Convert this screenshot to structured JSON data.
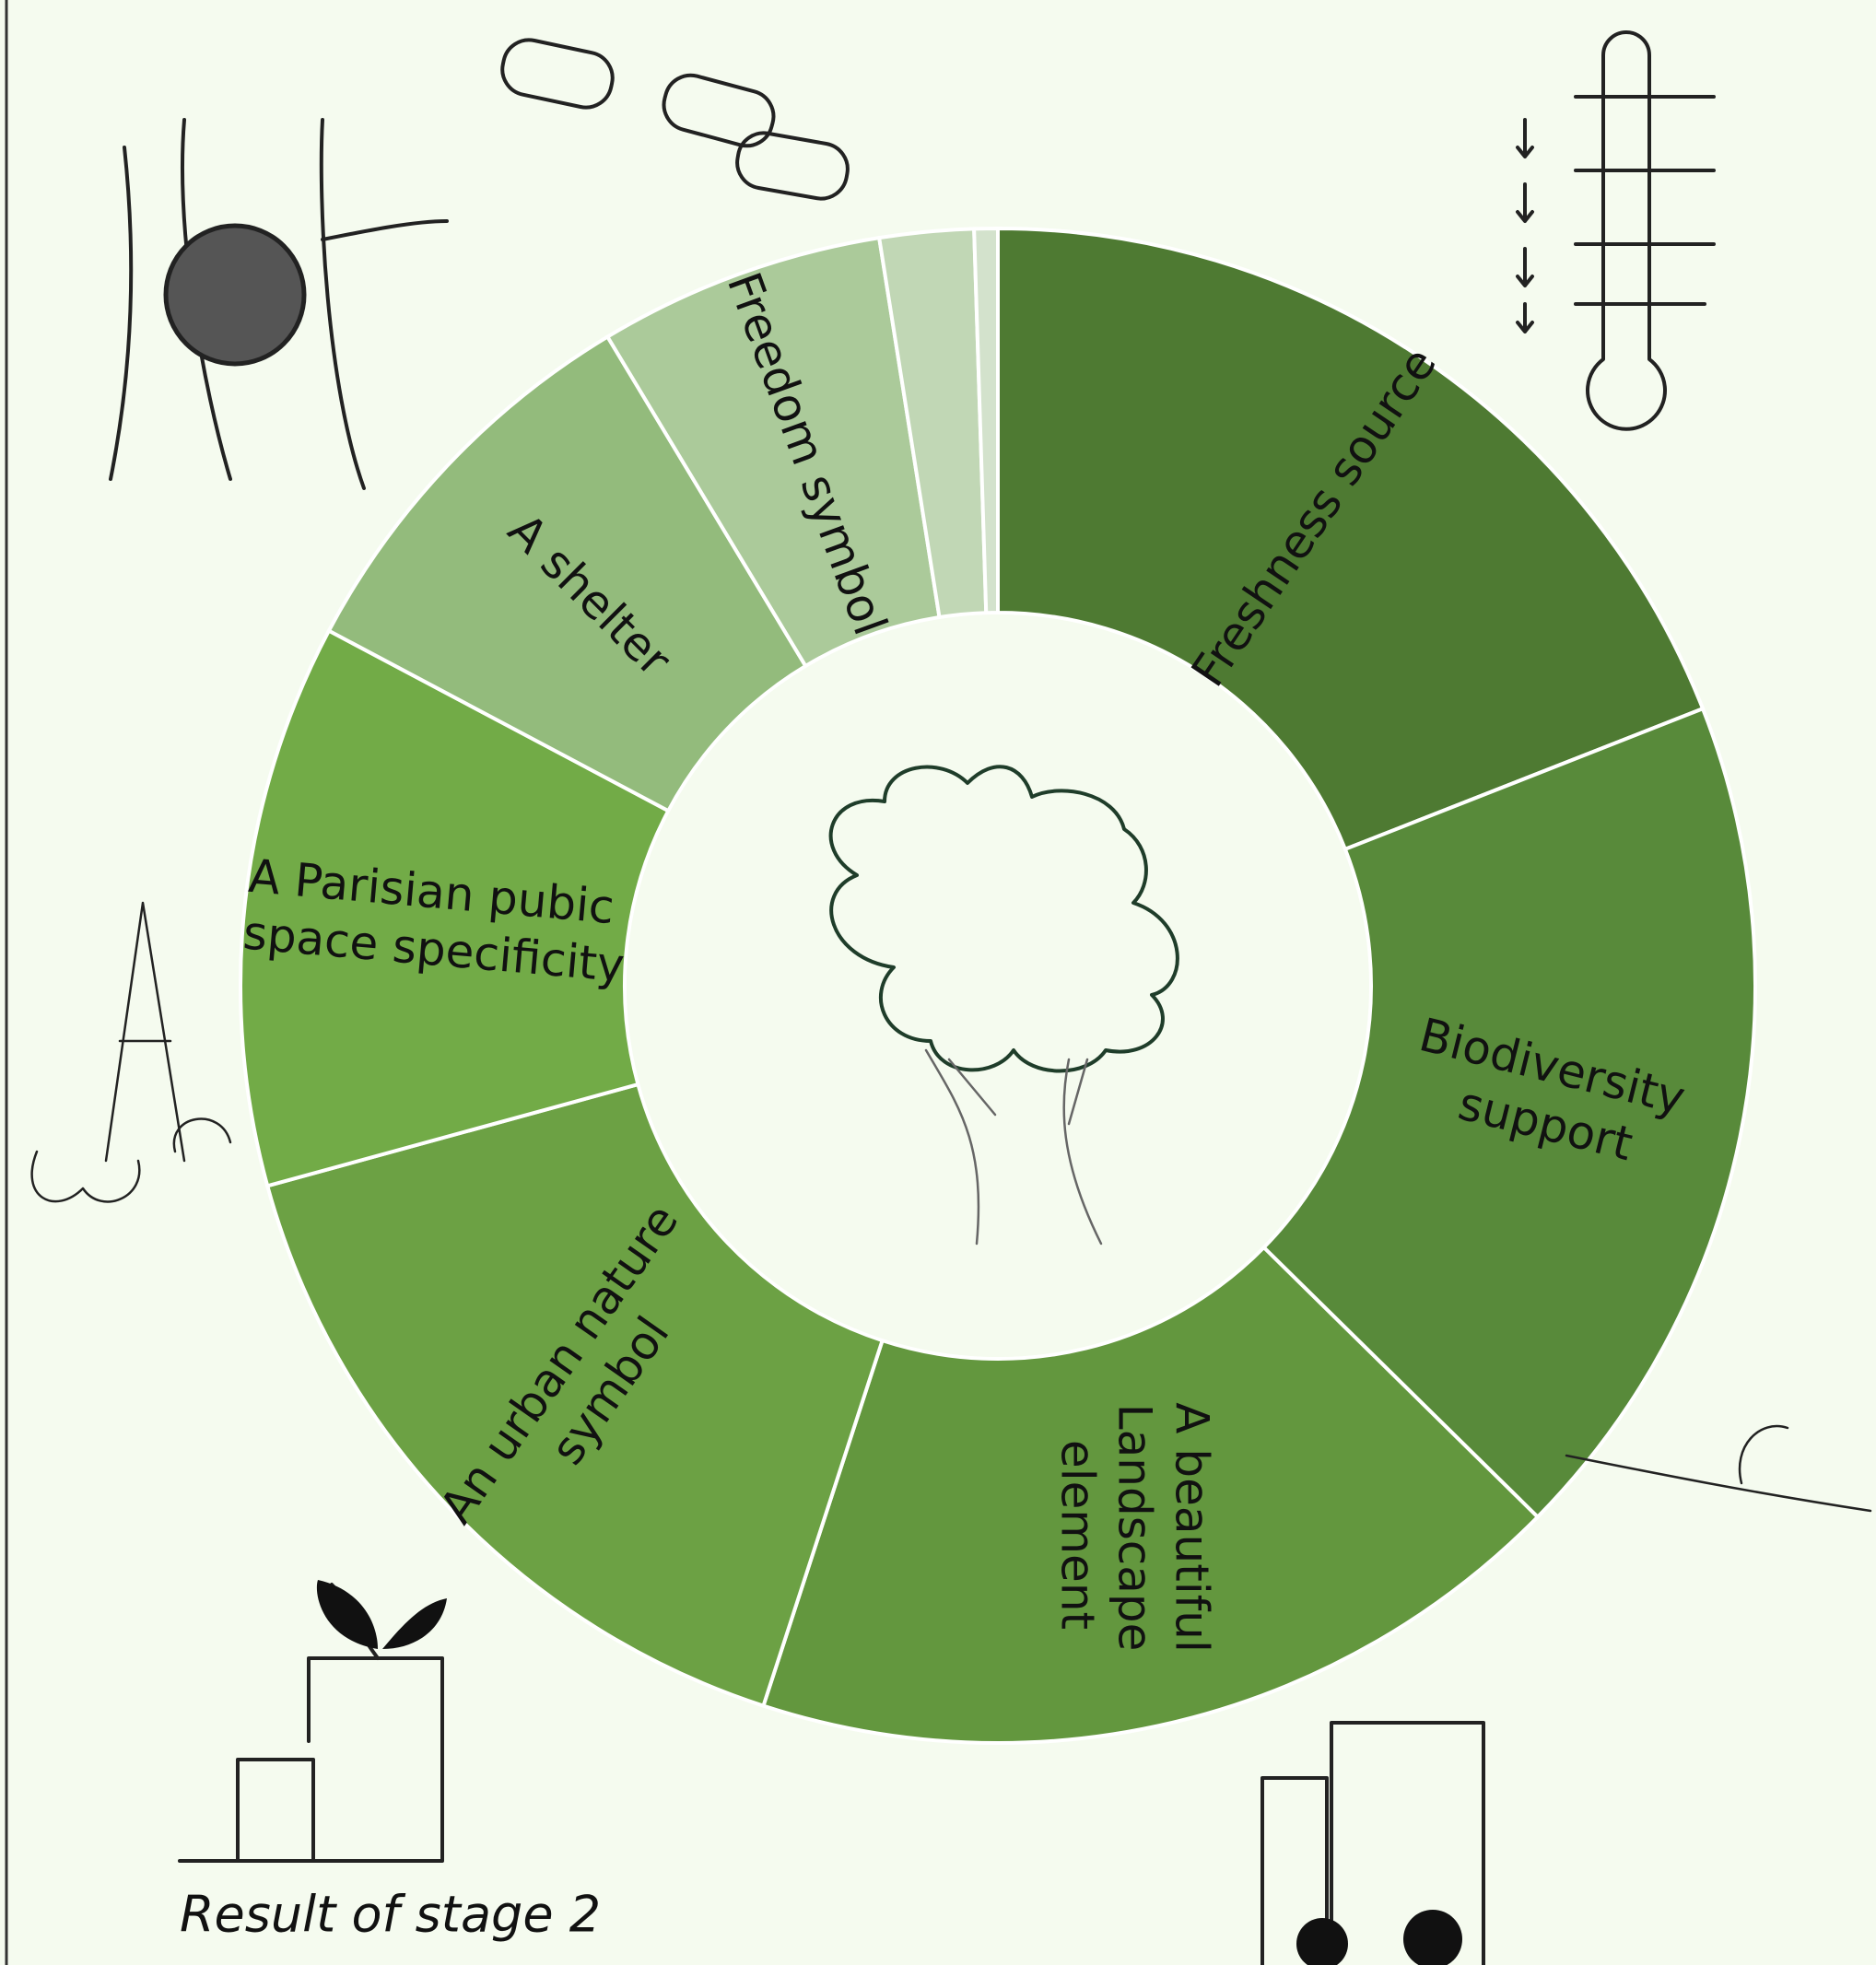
{
  "chart_data": {
    "type": "donut",
    "caption": "Result of stage 2",
    "categories": [
      "Freshness source",
      "Biodiversity support",
      "A beautiful Landscape element",
      "An urban nature symbol",
      "A Parisian pubic space specificity",
      "A shelter",
      "Freedom symbol",
      null,
      null
    ],
    "values": [
      19,
      18.3,
      17.6,
      15.7,
      12,
      8.6,
      6.1,
      2,
      0.5
    ],
    "colors": [
      "#4e7a32",
      "#588a3a",
      "#63973e",
      "#6ca144",
      "#72ab47",
      "#93bb7c",
      "#abca9a",
      "#c1d7b5",
      "#d3e2cc"
    ]
  }
}
